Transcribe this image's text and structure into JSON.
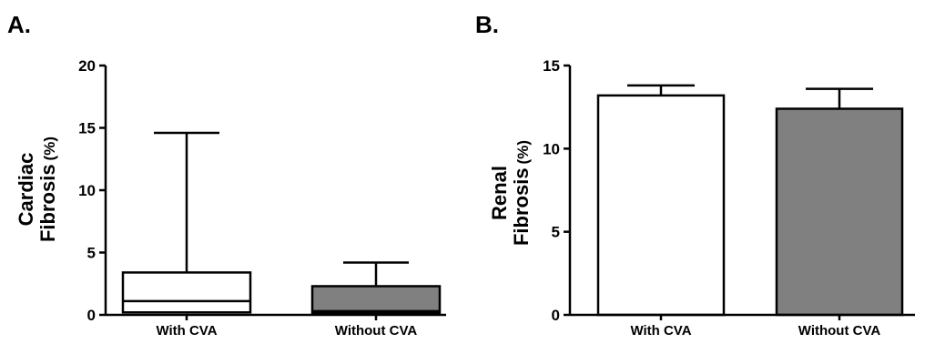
{
  "chart_data": [
    {
      "panel_label": "A.",
      "type": "box",
      "ylabel_line1": "Cardiac",
      "ylabel_line2": "Fibrosis",
      "ylabel_unit": "(%)",
      "ylim": [
        0,
        20
      ],
      "yticks": [
        "0",
        "5",
        "10",
        "15",
        "20"
      ],
      "yticks_values": [
        0,
        5,
        10,
        15,
        20
      ],
      "categories": [
        "With CVA",
        "Without CVA"
      ],
      "series": [
        {
          "category": "With CVA",
          "min": 0.1,
          "q1": 0.2,
          "median": 1.1,
          "q3": 3.4,
          "max": 14.6,
          "color": "#ffffff"
        },
        {
          "category": "Without CVA",
          "min": 0.1,
          "q1": 0.15,
          "median": 0.3,
          "q3": 2.3,
          "max": 4.2,
          "color": "#808080"
        }
      ]
    },
    {
      "panel_label": "B.",
      "type": "bar",
      "ylabel_line1": "Renal",
      "ylabel_line2": "Fibrosis",
      "ylabel_unit": "(%)",
      "ylim": [
        0,
        15
      ],
      "yticks": [
        "0",
        "5",
        "10",
        "15"
      ],
      "yticks_values": [
        0,
        5,
        10,
        15
      ],
      "categories": [
        "With CVA",
        "Without CVA"
      ],
      "values": [
        13.2,
        12.4
      ],
      "errors": [
        0.6,
        1.2
      ],
      "colors": [
        "#ffffff",
        "#808080"
      ]
    }
  ]
}
